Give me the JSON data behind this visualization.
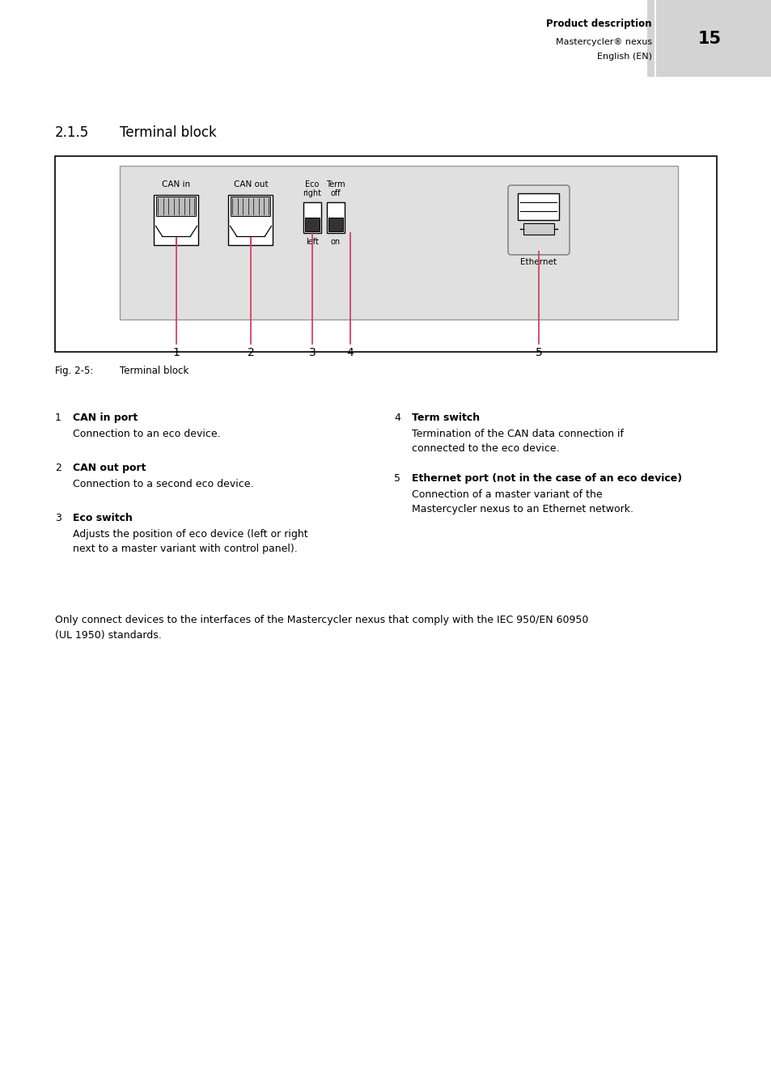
{
  "page_title": "Product description",
  "page_subtitle": "Mastercycler® nexus",
  "page_lang": "English (EN)",
  "page_number": "15",
  "section": "2.1.5",
  "section_title": "Terminal block",
  "fig_label": "Fig. 2-5:",
  "fig_caption": "Terminal block",
  "items": [
    {
      "num": "1",
      "bold": "CAN in port",
      "text": "Connection to an eco device."
    },
    {
      "num": "2",
      "bold": "CAN out port",
      "text": "Connection to a second eco device."
    },
    {
      "num": "3",
      "bold": "Eco switch",
      "text": "Adjusts the position of eco device (left or right\nnext to a master variant with control panel)."
    },
    {
      "num": "4",
      "bold": "Term switch",
      "text": "Termination of the CAN data connection if\nconnected to the eco device."
    },
    {
      "num": "5",
      "bold": "Ethernet port (not in the case of an eco device)",
      "text": "Connection of a master variant of the\nMastercycler nexus to an Ethernet network."
    }
  ],
  "note_line1": "Only connect devices to the interfaces of the Mastercycler nexus that comply with the IEC 950/EN 60950",
  "note_line2": "(UL 1950) standards.",
  "bg_color": "#ffffff",
  "header_gray": "#d3d3d3",
  "diagram_outer_bg": "#ffffff",
  "diagram_inner_bg": "#e0e0e0",
  "pink": "#d4406a",
  "black": "#000000",
  "port_fill": "#ffffff",
  "port_inner": "#c8c8c8"
}
